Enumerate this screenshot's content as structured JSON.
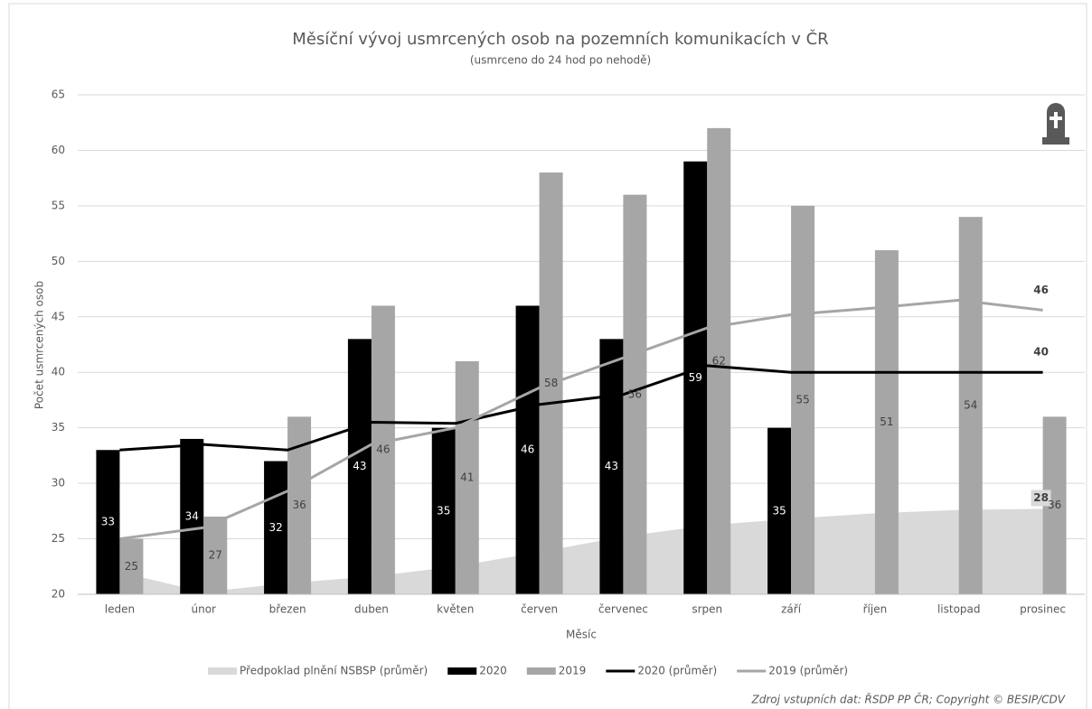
{
  "chart_data": {
    "type": "bar",
    "title": "Měsíční vývoj usmrcených osob na pozemních komunikacích v ČR",
    "subtitle": "(usmrceno do 24 hod po nehodě)",
    "y_label": "Počet usmrcených osob",
    "x_label": "Měsíc",
    "source": "Zdroj vstupních dat: ŘSDP PP ČR; Copyright © BESIP/CDV",
    "categories": [
      "leden",
      "únor",
      "březen",
      "duben",
      "květen",
      "červen",
      "červenec",
      "srpen",
      "září",
      "říjen",
      "listopad",
      "prosinec"
    ],
    "ylim": [
      20,
      65
    ],
    "yticks": [
      20,
      25,
      30,
      35,
      40,
      45,
      50,
      55,
      60,
      65
    ],
    "grid": true,
    "legend": "bottom",
    "series": [
      {
        "name": "Předpoklad plnění NSBSP (průměr)",
        "type": "area",
        "color": "#d9d9d9",
        "values": [
          22,
          20.2,
          21,
          21.6,
          22.5,
          23.8,
          25.2,
          26.2,
          26.8,
          27.3,
          27.6,
          27.7
        ],
        "value_labels": [
          null,
          null,
          null,
          null,
          null,
          null,
          null,
          null,
          null,
          null,
          null,
          "28"
        ]
      },
      {
        "name": "2020",
        "type": "bar",
        "color": "#000000",
        "values": [
          33,
          34,
          32,
          43,
          35,
          46,
          43,
          59,
          35,
          null,
          null,
          null
        ]
      },
      {
        "name": "2019",
        "type": "bar",
        "color": "#a6a6a6",
        "values": [
          25,
          27,
          36,
          46,
          41,
          58,
          56,
          62,
          55,
          51,
          54,
          36
        ]
      },
      {
        "name": "2020 (průměr)",
        "type": "line",
        "color": "#000000",
        "values": [
          33,
          33.5,
          33,
          35.5,
          35.4,
          37.1,
          38,
          40.6,
          40,
          40,
          40,
          40
        ],
        "value_labels": [
          null,
          null,
          null,
          null,
          null,
          null,
          null,
          null,
          null,
          null,
          null,
          "40"
        ]
      },
      {
        "name": "2019 (průměr)",
        "type": "line",
        "color": "#a6a6a6",
        "values": [
          25,
          26,
          29.3,
          33.5,
          35,
          38.6,
          41.3,
          44,
          45.2,
          45.8,
          46.5,
          45.6
        ],
        "value_labels": [
          null,
          null,
          null,
          null,
          null,
          null,
          null,
          null,
          null,
          null,
          null,
          "46"
        ]
      }
    ]
  }
}
